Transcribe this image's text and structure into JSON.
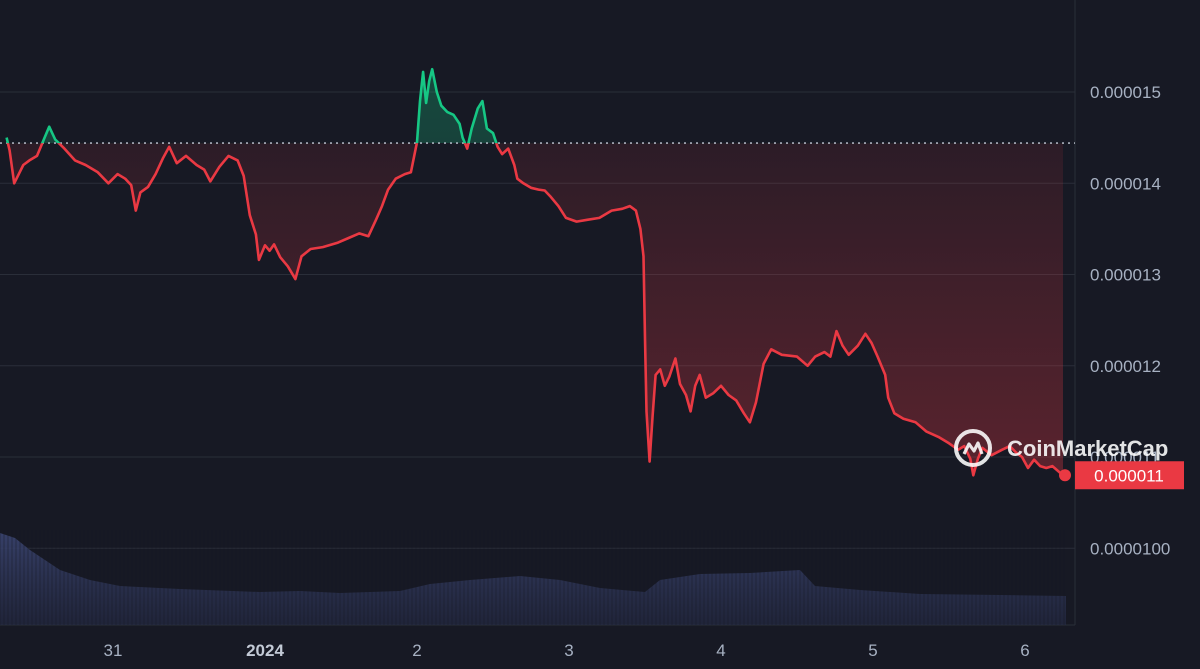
{
  "watermark": {
    "text": "CoinMarketCap"
  },
  "colors": {
    "background": "#171924",
    "up": "#16c784",
    "down": "#ea3943",
    "grid": "#2a2e39",
    "axis_text": "#a7b1c2",
    "volume": "#333c63"
  },
  "current_price": {
    "label": "0.000011",
    "value": 1.08e-05
  },
  "chart_data": {
    "type": "line",
    "title": "",
    "xlabel": "",
    "ylabel": "",
    "ylim": [
      9.5e-06,
      1.55e-05
    ],
    "xlim": [
      30.3,
      37.3
    ],
    "reference_price": 1.444e-05,
    "grid": "horizontal",
    "y_ticks": [
      {
        "value": 1.5e-05,
        "label": "0.000015"
      },
      {
        "value": 1.4e-05,
        "label": "0.000014"
      },
      {
        "value": 1.3e-05,
        "label": "0.000013"
      },
      {
        "value": 1.2e-05,
        "label": "0.000012"
      },
      {
        "value": 1.1e-05,
        "label": "0.000011"
      },
      {
        "value": 1e-05,
        "label": "0.0000100"
      }
    ],
    "x_ticks": [
      {
        "value": 31,
        "label": "31",
        "bold": false
      },
      {
        "value": 32,
        "label": "2024",
        "bold": true
      },
      {
        "value": 33,
        "label": "2",
        "bold": false
      },
      {
        "value": 34,
        "label": "3",
        "bold": false
      },
      {
        "value": 35,
        "label": "4",
        "bold": false
      },
      {
        "value": 36,
        "label": "5",
        "bold": false
      },
      {
        "value": 37,
        "label": "6",
        "bold": false
      }
    ],
    "series": [
      {
        "values": [
          [
            30.3,
            1.45e-05
          ],
          [
            30.32,
            1.436e-05
          ],
          [
            30.35,
            1.4e-05
          ],
          [
            30.38,
            1.41e-05
          ],
          [
            30.41,
            1.42e-05
          ],
          [
            30.45,
            1.425e-05
          ],
          [
            30.5,
            1.43e-05
          ],
          [
            30.55,
            1.45e-05
          ],
          [
            30.58,
            1.462e-05
          ],
          [
            30.62,
            1.448e-05
          ],
          [
            30.68,
            1.438e-05
          ],
          [
            30.75,
            1.425e-05
          ],
          [
            30.82,
            1.42e-05
          ],
          [
            30.9,
            1.412e-05
          ],
          [
            30.97,
            1.4e-05
          ],
          [
            31.03,
            1.41e-05
          ],
          [
            31.08,
            1.405e-05
          ],
          [
            31.12,
            1.398e-05
          ],
          [
            31.15,
            1.37e-05
          ],
          [
            31.18,
            1.39e-05
          ],
          [
            31.23,
            1.396e-05
          ],
          [
            31.28,
            1.41e-05
          ],
          [
            31.33,
            1.428e-05
          ],
          [
            31.37,
            1.44e-05
          ],
          [
            31.42,
            1.422e-05
          ],
          [
            31.48,
            1.43e-05
          ],
          [
            31.55,
            1.42e-05
          ],
          [
            31.6,
            1.415e-05
          ],
          [
            31.64,
            1.402e-05
          ],
          [
            31.7,
            1.418e-05
          ],
          [
            31.76,
            1.43e-05
          ],
          [
            31.82,
            1.425e-05
          ],
          [
            31.86,
            1.408e-05
          ],
          [
            31.9,
            1.365e-05
          ],
          [
            31.94,
            1.344e-05
          ],
          [
            31.96,
            1.316e-05
          ],
          [
            32.0,
            1.332e-05
          ],
          [
            32.03,
            1.326e-05
          ],
          [
            32.06,
            1.333e-05
          ],
          [
            32.1,
            1.319e-05
          ],
          [
            32.15,
            1.309e-05
          ],
          [
            32.2,
            1.295e-05
          ],
          [
            32.24,
            1.32e-05
          ],
          [
            32.3,
            1.328e-05
          ],
          [
            32.38,
            1.33e-05
          ],
          [
            32.48,
            1.335e-05
          ],
          [
            32.55,
            1.34e-05
          ],
          [
            32.62,
            1.345e-05
          ],
          [
            32.68,
            1.342e-05
          ],
          [
            32.73,
            1.36e-05
          ],
          [
            32.77,
            1.375e-05
          ],
          [
            32.81,
            1.393e-05
          ],
          [
            32.86,
            1.405e-05
          ],
          [
            32.92,
            1.41e-05
          ],
          [
            32.96,
            1.412e-05
          ],
          [
            33.0,
            1.445e-05
          ],
          [
            33.02,
            1.49e-05
          ],
          [
            33.04,
            1.522e-05
          ],
          [
            33.06,
            1.488e-05
          ],
          [
            33.08,
            1.512e-05
          ],
          [
            33.1,
            1.525e-05
          ],
          [
            33.13,
            1.5e-05
          ],
          [
            33.16,
            1.485e-05
          ],
          [
            33.2,
            1.478e-05
          ],
          [
            33.24,
            1.475e-05
          ],
          [
            33.28,
            1.465e-05
          ],
          [
            33.3,
            1.45e-05
          ],
          [
            33.33,
            1.438e-05
          ],
          [
            33.36,
            1.46e-05
          ],
          [
            33.4,
            1.482e-05
          ],
          [
            33.43,
            1.49e-05
          ],
          [
            33.46,
            1.46e-05
          ],
          [
            33.5,
            1.455e-05
          ],
          [
            33.53,
            1.44e-05
          ],
          [
            33.56,
            1.432e-05
          ],
          [
            33.6,
            1.438e-05
          ],
          [
            33.64,
            1.42e-05
          ],
          [
            33.66,
            1.405e-05
          ],
          [
            33.7,
            1.4e-05
          ],
          [
            33.75,
            1.395e-05
          ],
          [
            33.8,
            1.393e-05
          ],
          [
            33.84,
            1.392e-05
          ],
          [
            33.88,
            1.385e-05
          ],
          [
            33.93,
            1.375e-05
          ],
          [
            33.98,
            1.362e-05
          ],
          [
            34.05,
            1.358e-05
          ],
          [
            34.12,
            1.36e-05
          ],
          [
            34.2,
            1.362e-05
          ],
          [
            34.28,
            1.37e-05
          ],
          [
            34.35,
            1.372e-05
          ],
          [
            34.4,
            1.375e-05
          ],
          [
            34.44,
            1.37e-05
          ],
          [
            34.47,
            1.35e-05
          ],
          [
            34.49,
            1.32e-05
          ],
          [
            34.5,
            1.23e-05
          ],
          [
            34.51,
            1.15e-05
          ],
          [
            34.53,
            1.095e-05
          ],
          [
            34.55,
            1.145e-05
          ],
          [
            34.57,
            1.19e-05
          ],
          [
            34.6,
            1.196e-05
          ],
          [
            34.63,
            1.178e-05
          ],
          [
            34.66,
            1.188e-05
          ],
          [
            34.7,
            1.208e-05
          ],
          [
            34.73,
            1.18e-05
          ],
          [
            34.77,
            1.168e-05
          ],
          [
            34.8,
            1.15e-05
          ],
          [
            34.83,
            1.178e-05
          ],
          [
            34.86,
            1.19e-05
          ],
          [
            34.9,
            1.165e-05
          ],
          [
            34.95,
            1.17e-05
          ],
          [
            35.0,
            1.178e-05
          ],
          [
            35.05,
            1.168e-05
          ],
          [
            35.1,
            1.162e-05
          ],
          [
            35.15,
            1.148e-05
          ],
          [
            35.19,
            1.138e-05
          ],
          [
            35.23,
            1.16e-05
          ],
          [
            35.28,
            1.202e-05
          ],
          [
            35.33,
            1.218e-05
          ],
          [
            35.4,
            1.212e-05
          ],
          [
            35.5,
            1.21e-05
          ],
          [
            35.57,
            1.2e-05
          ],
          [
            35.62,
            1.21e-05
          ],
          [
            35.68,
            1.215e-05
          ],
          [
            35.72,
            1.21e-05
          ],
          [
            35.76,
            1.238e-05
          ],
          [
            35.8,
            1.222e-05
          ],
          [
            35.84,
            1.212e-05
          ],
          [
            35.9,
            1.222e-05
          ],
          [
            35.95,
            1.235e-05
          ],
          [
            35.99,
            1.225e-05
          ],
          [
            36.03,
            1.21e-05
          ],
          [
            36.08,
            1.19e-05
          ],
          [
            36.1,
            1.165e-05
          ],
          [
            36.14,
            1.148e-05
          ],
          [
            36.2,
            1.142e-05
          ],
          [
            36.28,
            1.138e-05
          ],
          [
            36.35,
            1.128e-05
          ],
          [
            36.43,
            1.122e-05
          ],
          [
            36.5,
            1.115e-05
          ],
          [
            36.56,
            1.108e-05
          ],
          [
            36.6,
            1.112e-05
          ],
          [
            36.64,
            1.098e-05
          ],
          [
            36.66,
            1.08e-05
          ],
          [
            36.69,
            1.098e-05
          ],
          [
            36.72,
            1.11e-05
          ],
          [
            36.78,
            1.102e-05
          ],
          [
            36.85,
            1.108e-05
          ],
          [
            36.9,
            1.112e-05
          ],
          [
            36.94,
            1.105e-05
          ],
          [
            36.98,
            1.1e-05
          ],
          [
            37.02,
            1.088e-05
          ],
          [
            37.06,
            1.097e-05
          ],
          [
            37.1,
            1.09e-05
          ],
          [
            37.14,
            1.088e-05
          ],
          [
            37.18,
            1.09e-05
          ],
          [
            37.25,
            1.08e-05
          ]
        ]
      }
    ]
  }
}
